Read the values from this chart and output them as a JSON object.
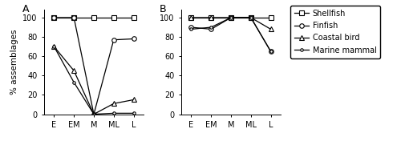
{
  "x_labels": [
    "E",
    "EM",
    "M",
    "ML",
    "L"
  ],
  "panel_A": {
    "shellfish": [
      100,
      100,
      100,
      100,
      100
    ],
    "finfish": [
      100,
      100,
      0,
      77,
      78
    ],
    "coastal_bird": [
      70,
      45,
      0,
      11,
      15
    ],
    "marine_mammal": [
      70,
      33,
      0,
      1,
      1
    ]
  },
  "panel_B": {
    "shellfish": [
      100,
      100,
      100,
      100,
      100
    ],
    "finfish": [
      90,
      88,
      100,
      100,
      65
    ],
    "coastal_bird": [
      100,
      100,
      100,
      100,
      88
    ],
    "marine_mammal": [
      88,
      90,
      100,
      100,
      65
    ]
  },
  "ylabel": "% assemblages",
  "ylim": [
    0,
    108
  ],
  "yticks": [
    0,
    20,
    40,
    60,
    80,
    100
  ],
  "legend_labels": [
    "Shellfish",
    "Finfish",
    "Coastal bird",
    "Marine mammal"
  ],
  "markers": [
    "s",
    "o",
    "^",
    "o"
  ],
  "marker_sizes": [
    4,
    4,
    4,
    3
  ],
  "linewidth": 0.9,
  "bg_color": "#f0f0f0"
}
